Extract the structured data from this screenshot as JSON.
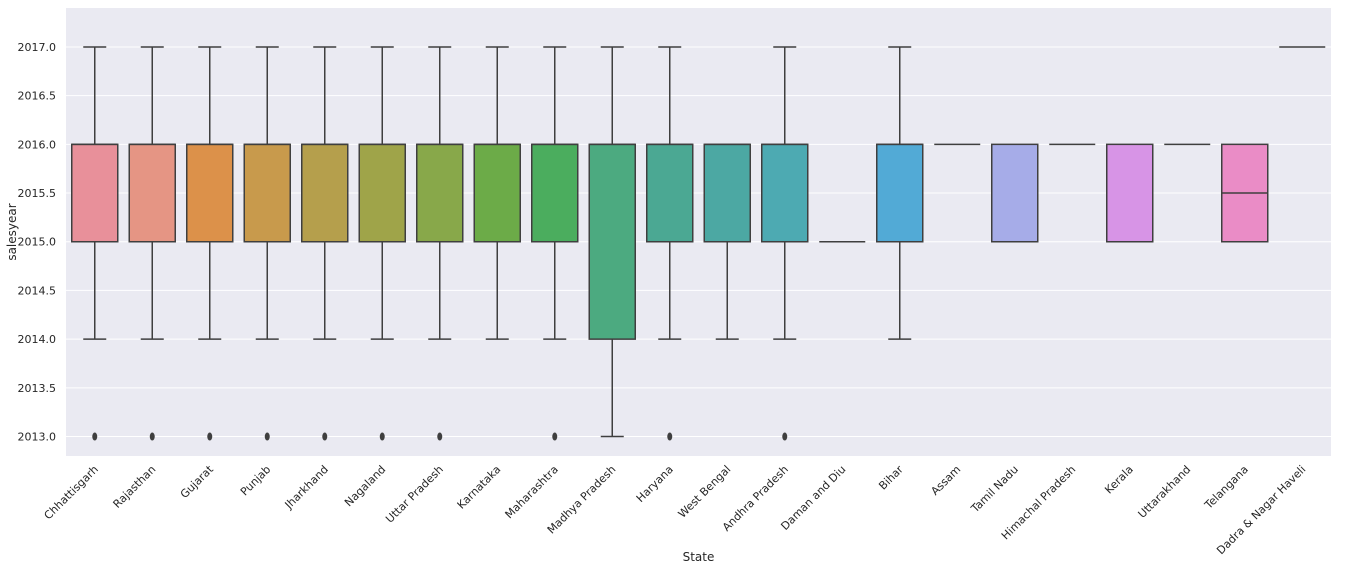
{
  "chart_data": {
    "type": "box",
    "xlabel": "State",
    "ylabel": "salesyear",
    "ylim": [
      2012.8,
      2017.4
    ],
    "yticks": [
      2013.0,
      2013.5,
      2014.0,
      2014.5,
      2015.0,
      2015.5,
      2016.0,
      2016.5,
      2017.0
    ],
    "ytick_labels": [
      "2013.0",
      "2013.5",
      "2014.0",
      "2014.5",
      "2015.0",
      "2015.5",
      "2016.0",
      "2016.5",
      "2017.0"
    ],
    "grid": true,
    "categories": [
      {
        "name": "Chhattisgarh",
        "color": "#e8909a",
        "q1": 2015,
        "median": 2016,
        "q3": 2016,
        "whislo": 2014,
        "whishi": 2017,
        "fliers": [
          2013
        ]
      },
      {
        "name": "Rajasthan",
        "color": "#e59584",
        "q1": 2015,
        "median": 2016,
        "q3": 2016,
        "whislo": 2014,
        "whishi": 2017,
        "fliers": [
          2013
        ]
      },
      {
        "name": "Gujarat",
        "color": "#dc914a",
        "q1": 2015,
        "median": 2016,
        "q3": 2016,
        "whislo": 2014,
        "whishi": 2017,
        "fliers": [
          2013
        ]
      },
      {
        "name": "Punjab",
        "color": "#c89a4c",
        "q1": 2015,
        "median": 2016,
        "q3": 2016,
        "whislo": 2014,
        "whishi": 2017,
        "fliers": [
          2013
        ]
      },
      {
        "name": "Jharkhand",
        "color": "#b59f4c",
        "q1": 2015,
        "median": 2016,
        "q3": 2016,
        "whislo": 2014,
        "whishi": 2017,
        "fliers": [
          2013
        ]
      },
      {
        "name": "Nagaland",
        "color": "#9fa449",
        "q1": 2015,
        "median": 2016,
        "q3": 2016,
        "whislo": 2014,
        "whishi": 2017,
        "fliers": [
          2013
        ]
      },
      {
        "name": "Uttar Pradesh",
        "color": "#88a84a",
        "q1": 2015,
        "median": 2016,
        "q3": 2016,
        "whislo": 2014,
        "whishi": 2017,
        "fliers": [
          2013
        ]
      },
      {
        "name": "Karnataka",
        "color": "#6cab48",
        "q1": 2015,
        "median": 2016,
        "q3": 2016,
        "whislo": 2014,
        "whishi": 2017,
        "fliers": []
      },
      {
        "name": "Maharashtra",
        "color": "#4bad5e",
        "q1": 2015,
        "median": 2016,
        "q3": 2016,
        "whislo": 2014,
        "whishi": 2017,
        "fliers": [
          2013
        ]
      },
      {
        "name": "Madhya Pradesh",
        "color": "#4caa80",
        "q1": 2014,
        "median": 2016,
        "q3": 2016,
        "whislo": 2013,
        "whishi": 2017,
        "fliers": []
      },
      {
        "name": "Haryana",
        "color": "#4ba893",
        "q1": 2015,
        "median": 2016,
        "q3": 2016,
        "whislo": 2014,
        "whishi": 2017,
        "fliers": [
          2013
        ]
      },
      {
        "name": "West Bengal",
        "color": "#4ca8a3",
        "q1": 2015,
        "median": 2016,
        "q3": 2016,
        "whislo": 2014,
        "whishi": 2016,
        "fliers": []
      },
      {
        "name": "Andhra Pradesh",
        "color": "#4daab2",
        "q1": 2015,
        "median": 2016,
        "q3": 2016,
        "whislo": 2014,
        "whishi": 2017,
        "fliers": [
          2013
        ]
      },
      {
        "name": "Daman and Diu",
        "color": "#4eabc0",
        "q1": 2015,
        "median": 2015,
        "q3": 2015,
        "whislo": 2015,
        "whishi": 2015,
        "fliers": []
      },
      {
        "name": "Bihar",
        "color": "#52aad6",
        "q1": 2015,
        "median": 2016,
        "q3": 2016,
        "whislo": 2014,
        "whishi": 2017,
        "fliers": []
      },
      {
        "name": "Assam",
        "color": "#7aa9e8",
        "q1": 2016,
        "median": 2016,
        "q3": 2016,
        "whislo": 2016,
        "whishi": 2016,
        "fliers": []
      },
      {
        "name": "Tamil Nadu",
        "color": "#a6ace8",
        "q1": 2015,
        "median": 2015,
        "q3": 2016,
        "whislo": 2015,
        "whishi": 2016,
        "fliers": []
      },
      {
        "name": "Himachal Pradesh",
        "color": "#c3a2e8",
        "q1": 2016,
        "median": 2016,
        "q3": 2016,
        "whislo": 2016,
        "whishi": 2016,
        "fliers": []
      },
      {
        "name": "Kerala",
        "color": "#d794e6",
        "q1": 2015,
        "median": 2015,
        "q3": 2016,
        "whislo": 2015,
        "whishi": 2016,
        "fliers": []
      },
      {
        "name": "Uttarakhand",
        "color": "#e48dd2",
        "q1": 2016,
        "median": 2016,
        "q3": 2016,
        "whislo": 2016,
        "whishi": 2016,
        "fliers": []
      },
      {
        "name": "Telangana",
        "color": "#ea8cc6",
        "q1": 2015,
        "median": 2015.5,
        "q3": 2016,
        "whislo": 2015,
        "whishi": 2016,
        "fliers": []
      },
      {
        "name": "Dadra & Nagar Haveli",
        "color": "#ec8fb8",
        "q1": 2017,
        "median": 2017,
        "q3": 2017,
        "whislo": 2017,
        "whishi": 2017,
        "fliers": []
      }
    ]
  },
  "colors": {
    "plot_background": "#eaeaf2",
    "grid": "#ffffff",
    "box_edge": "#3f3f3f",
    "text": "#262626"
  }
}
